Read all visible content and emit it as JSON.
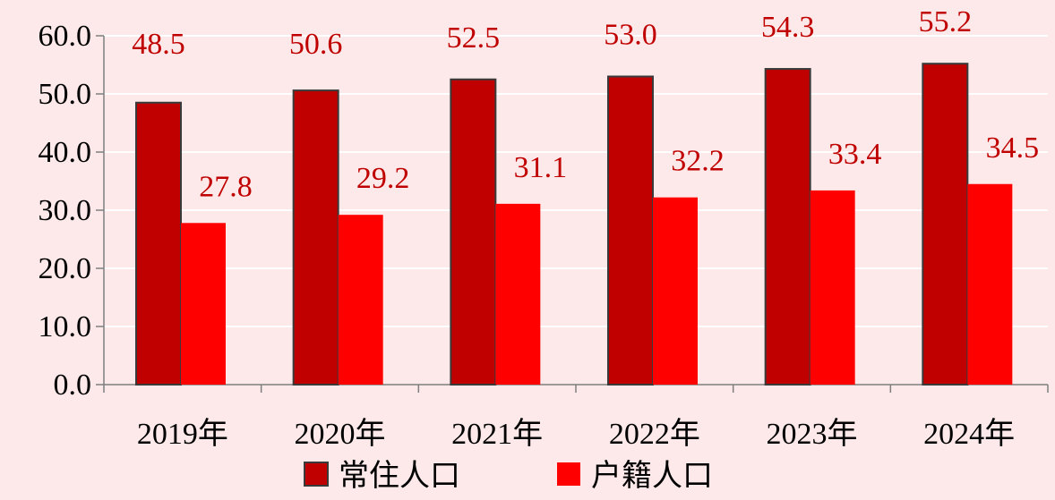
{
  "chart_data": {
    "type": "bar",
    "categories": [
      "2019年",
      "2020年",
      "2021年",
      "2022年",
      "2023年",
      "2024年"
    ],
    "series": [
      {
        "name": "常住人口",
        "values": [
          48.5,
          50.6,
          52.5,
          53.0,
          54.3,
          55.2
        ],
        "color": "#c00000"
      },
      {
        "name": "户籍人口",
        "values": [
          27.8,
          29.2,
          31.1,
          32.2,
          33.4,
          34.5
        ],
        "color": "#ff0000"
      }
    ],
    "value_labels": [
      [
        "48.5",
        "50.6",
        "52.5",
        "53.0",
        "54.3",
        "55.2"
      ],
      [
        "27.8",
        "29.2",
        "31.1",
        "32.2",
        "33.4",
        "34.5"
      ]
    ],
    "ylim": [
      0,
      60
    ],
    "y_ticks": [
      "0.0",
      "10.0",
      "20.0",
      "30.0",
      "40.0",
      "50.0",
      "60.0"
    ],
    "grid": true,
    "legend": "bottom-center",
    "data_label_color": "#c00000",
    "grid_color": "#ffffff",
    "background": "#fde9e9",
    "title": "",
    "xlabel": "",
    "ylabel": ""
  }
}
